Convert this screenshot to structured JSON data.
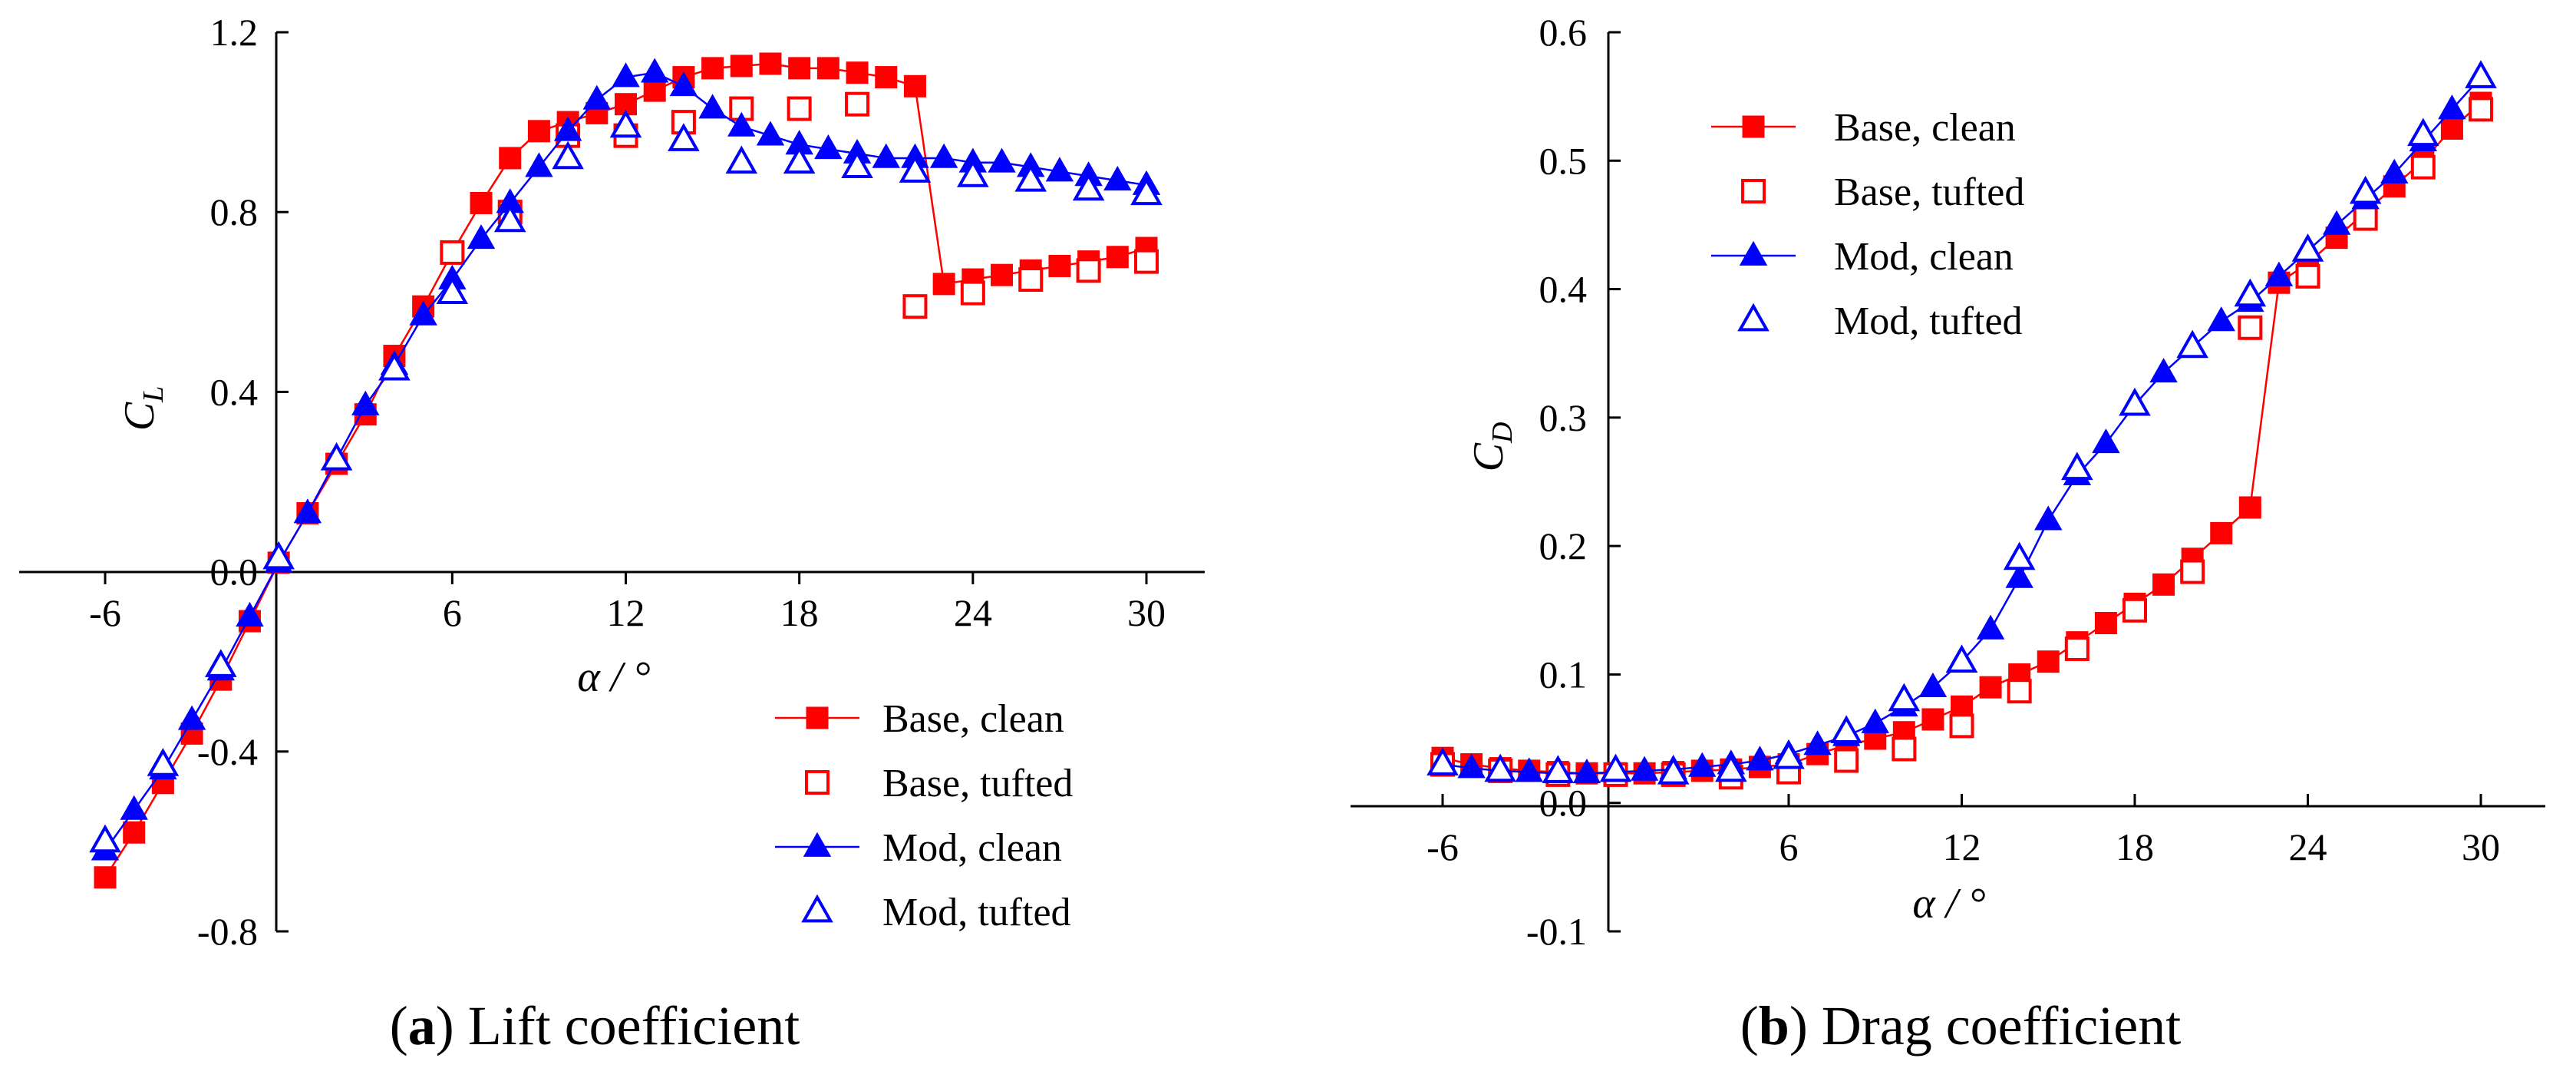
{
  "colors": {
    "base": "#ff0000",
    "mod": "#0000ff",
    "axis": "#000000"
  },
  "chart_data": [
    {
      "type": "line",
      "id": "lift",
      "caption_label": "a",
      "caption_text": "Lift coefficient",
      "xlabel": "α / °",
      "ylabel": "C",
      "ylabel_sub": "L",
      "xlim": [
        -8,
        32
      ],
      "ylim": [
        -0.8,
        1.2
      ],
      "xticks": [
        -6,
        6,
        12,
        18,
        24,
        30
      ],
      "xtick_labels": [
        "-6",
        "6",
        "12",
        "18",
        "24",
        "30"
      ],
      "yticks": [
        -0.8,
        -0.4,
        0.0,
        0.4,
        0.8,
        1.2
      ],
      "ytick_labels": [
        "-0.8",
        "-0.4",
        "0.0",
        "0.4",
        "0.8",
        "1.2"
      ],
      "legend_position": "bottom-right",
      "series": [
        {
          "name": "Base, clean",
          "style": "filled-square-line",
          "color": "#ff0000",
          "x": [
            -6,
            -5,
            -4,
            -3,
            -2,
            -1,
            0,
            1,
            2,
            3,
            4,
            5,
            6,
            7,
            8,
            9,
            10,
            11,
            12,
            13,
            14,
            15,
            16,
            17,
            18,
            19,
            20,
            21,
            22,
            23,
            24,
            25,
            26,
            27,
            28,
            29,
            30
          ],
          "values": [
            -0.68,
            -0.58,
            -0.47,
            -0.36,
            -0.24,
            -0.11,
            0.02,
            0.13,
            0.24,
            0.35,
            0.48,
            0.59,
            0.71,
            0.82,
            0.92,
            0.98,
            1.0,
            1.02,
            1.04,
            1.07,
            1.1,
            1.12,
            1.125,
            1.13,
            1.12,
            1.12,
            1.11,
            1.1,
            1.08,
            0.64,
            0.65,
            0.66,
            0.67,
            0.68,
            0.69,
            0.7,
            0.72
          ]
        },
        {
          "name": "Base, tufted",
          "style": "open-square",
          "color": "#ff0000",
          "x": [
            6,
            8,
            10,
            12,
            14,
            16,
            18,
            20,
            22,
            24,
            26,
            28,
            30
          ],
          "values": [
            0.71,
            0.8,
            0.97,
            0.97,
            1.0,
            1.03,
            1.03,
            1.04,
            0.59,
            0.62,
            0.65,
            0.67,
            0.69
          ]
        },
        {
          "name": "Mod, clean",
          "style": "filled-triangle-line",
          "color": "#0000ff",
          "x": [
            -6,
            -5,
            -4,
            -3,
            -2,
            -1,
            0,
            1,
            2,
            3,
            4,
            5,
            6,
            7,
            8,
            9,
            10,
            11,
            12,
            13,
            14,
            15,
            16,
            17,
            18,
            19,
            20,
            21,
            22,
            23,
            24,
            25,
            26,
            27,
            28,
            29,
            30
          ],
          "values": [
            -0.62,
            -0.53,
            -0.44,
            -0.33,
            -0.22,
            -0.1,
            0.02,
            0.13,
            0.25,
            0.37,
            0.46,
            0.57,
            0.65,
            0.74,
            0.82,
            0.9,
            0.98,
            1.05,
            1.1,
            1.11,
            1.08,
            1.03,
            0.99,
            0.97,
            0.95,
            0.94,
            0.93,
            0.92,
            0.92,
            0.92,
            0.91,
            0.91,
            0.9,
            0.89,
            0.88,
            0.87,
            0.86
          ]
        },
        {
          "name": "Mod, tufted",
          "style": "open-triangle",
          "color": "#0000ff",
          "x": [
            -6,
            -4,
            -2,
            0,
            2,
            4,
            6,
            8,
            10,
            12,
            14,
            16,
            18,
            20,
            22,
            24,
            26,
            28,
            30
          ],
          "values": [
            -0.6,
            -0.43,
            -0.21,
            0.03,
            0.25,
            0.45,
            0.62,
            0.78,
            0.92,
            0.99,
            0.96,
            0.91,
            0.91,
            0.9,
            0.89,
            0.88,
            0.87,
            0.85,
            0.84
          ]
        }
      ]
    },
    {
      "type": "line",
      "id": "drag",
      "caption_label": "b",
      "caption_text": "Drag coefficient",
      "xlabel": "α / °",
      "ylabel": "C",
      "ylabel_sub": "D",
      "xlim": [
        -8,
        32
      ],
      "ylim": [
        -0.1,
        0.6
      ],
      "xticks": [
        -6,
        6,
        12,
        18,
        24,
        30
      ],
      "xtick_labels": [
        "-6",
        "6",
        "12",
        "18",
        "24",
        "30"
      ],
      "yticks": [
        -0.1,
        0.0,
        0.1,
        0.2,
        0.3,
        0.4,
        0.5,
        0.6
      ],
      "ytick_labels": [
        "-0.1",
        "0.0",
        "0.1",
        "0.2",
        "0.3",
        "0.4",
        "0.5",
        "0.6"
      ],
      "legend_position": "top-left",
      "series": [
        {
          "name": "Base, clean",
          "style": "filled-square-line",
          "color": "#ff0000",
          "x": [
            -6,
            -5,
            -4,
            -3,
            -2,
            -1,
            0,
            1,
            2,
            3,
            4,
            5,
            6,
            7,
            8,
            9,
            10,
            11,
            12,
            13,
            14,
            15,
            16,
            17,
            18,
            19,
            20,
            21,
            22,
            23,
            24,
            25,
            26,
            27,
            28,
            29,
            30
          ],
          "values": [
            0.035,
            0.03,
            0.027,
            0.025,
            0.024,
            0.023,
            0.023,
            0.023,
            0.024,
            0.025,
            0.026,
            0.028,
            0.03,
            0.038,
            0.045,
            0.05,
            0.055,
            0.065,
            0.075,
            0.09,
            0.1,
            0.11,
            0.125,
            0.14,
            0.155,
            0.17,
            0.19,
            0.21,
            0.23,
            0.405,
            0.42,
            0.44,
            0.46,
            0.48,
            0.5,
            0.525,
            0.545
          ]
        },
        {
          "name": "Base, tufted",
          "style": "open-square",
          "color": "#ff0000",
          "x": [
            -6,
            -4,
            -2,
            0,
            2,
            4,
            6,
            8,
            10,
            12,
            14,
            16,
            18,
            20,
            22,
            24,
            26,
            28,
            30
          ],
          "values": [
            0.03,
            0.025,
            0.022,
            0.022,
            0.022,
            0.02,
            0.024,
            0.033,
            0.042,
            0.06,
            0.087,
            0.12,
            0.15,
            0.18,
            0.37,
            0.41,
            0.455,
            0.495,
            0.54
          ]
        },
        {
          "name": "Mod, clean",
          "style": "filled-triangle-line",
          "color": "#0000ff",
          "x": [
            -6,
            -5,
            -4,
            -3,
            -2,
            -1,
            0,
            1,
            2,
            3,
            4,
            5,
            6,
            7,
            8,
            9,
            10,
            11,
            12,
            13,
            14,
            15,
            16,
            17,
            18,
            19,
            20,
            21,
            22,
            23,
            24,
            25,
            26,
            27,
            28,
            29,
            30
          ],
          "values": [
            0.03,
            0.027,
            0.025,
            0.024,
            0.023,
            0.023,
            0.024,
            0.025,
            0.026,
            0.028,
            0.03,
            0.033,
            0.038,
            0.045,
            0.052,
            0.062,
            0.075,
            0.09,
            0.11,
            0.135,
            0.175,
            0.22,
            0.255,
            0.28,
            0.31,
            0.335,
            0.355,
            0.375,
            0.39,
            0.41,
            0.43,
            0.45,
            0.47,
            0.49,
            0.515,
            0.54,
            0.565
          ]
        },
        {
          "name": "Mod, tufted",
          "style": "open-triangle",
          "color": "#0000ff",
          "x": [
            -6,
            -4,
            -2,
            0,
            2,
            4,
            6,
            8,
            10,
            12,
            14,
            16,
            18,
            20,
            22,
            24,
            26,
            28,
            30
          ],
          "values": [
            0.03,
            0.025,
            0.024,
            0.025,
            0.023,
            0.025,
            0.035,
            0.055,
            0.08,
            0.11,
            0.19,
            0.26,
            0.31,
            0.355,
            0.395,
            0.43,
            0.475,
            0.52,
            0.565
          ]
        }
      ]
    }
  ]
}
